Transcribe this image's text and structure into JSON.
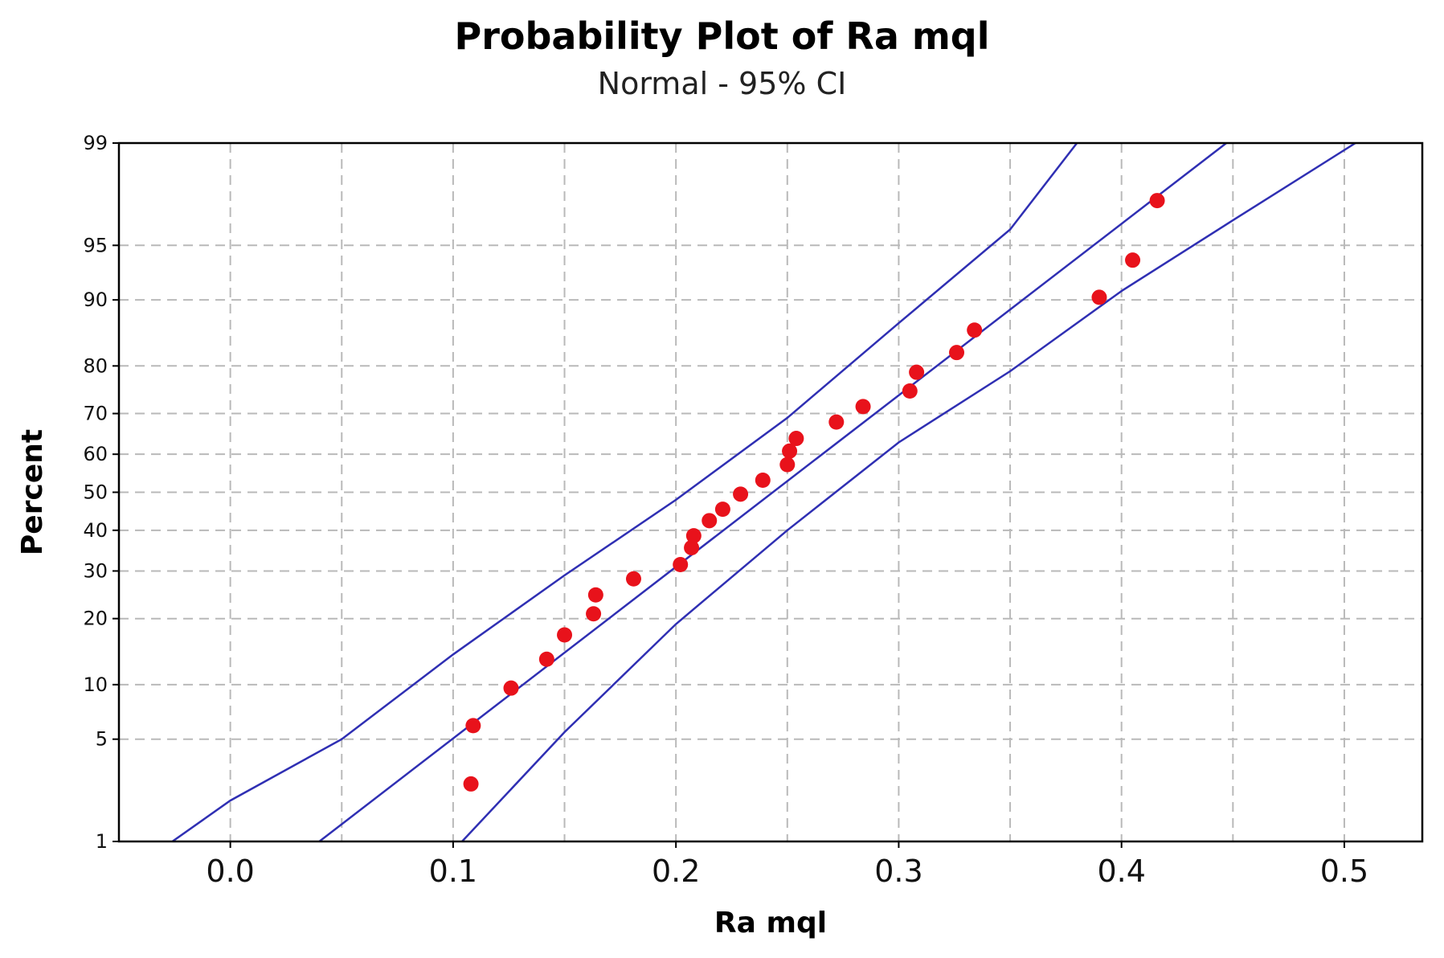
{
  "chart_data": {
    "type": "scatter",
    "title": "Probability Plot of Ra mql",
    "subtitle": "Normal - 95% CI",
    "xlabel": "Ra mql",
    "ylabel": "Percent",
    "xlim": [
      -0.05,
      0.535
    ],
    "ylim": [
      1,
      99
    ],
    "grid": true,
    "x_ticks": [
      0.0,
      0.1,
      0.2,
      0.3,
      0.4,
      0.5
    ],
    "x_tick_labels": [
      "0.0",
      "0.1",
      "0.2",
      "0.3",
      "0.4",
      "0.5"
    ],
    "x_minor_gridlines": [
      -0.05,
      0.05,
      0.15,
      0.25,
      0.35,
      0.45
    ],
    "y_ticks": [
      1,
      5,
      10,
      20,
      30,
      40,
      50,
      60,
      70,
      80,
      90,
      95,
      99
    ],
    "y_tick_labels": [
      "1",
      "5",
      "10",
      "20",
      "30",
      "40",
      "50",
      "60",
      "70",
      "80",
      "90",
      "95",
      "99"
    ],
    "points": [
      {
        "x": 0.108,
        "y": 2.6
      },
      {
        "x": 0.109,
        "y": 6.0
      },
      {
        "x": 0.126,
        "y": 9.6
      },
      {
        "x": 0.142,
        "y": 13.3
      },
      {
        "x": 0.15,
        "y": 17.1
      },
      {
        "x": 0.163,
        "y": 20.9
      },
      {
        "x": 0.164,
        "y": 24.7
      },
      {
        "x": 0.181,
        "y": 28.2
      },
      {
        "x": 0.202,
        "y": 31.5
      },
      {
        "x": 0.207,
        "y": 35.6
      },
      {
        "x": 0.208,
        "y": 38.6
      },
      {
        "x": 0.215,
        "y": 42.5
      },
      {
        "x": 0.221,
        "y": 45.5
      },
      {
        "x": 0.229,
        "y": 49.5
      },
      {
        "x": 0.239,
        "y": 53.2
      },
      {
        "x": 0.25,
        "y": 57.3
      },
      {
        "x": 0.251,
        "y": 60.8
      },
      {
        "x": 0.254,
        "y": 64.0
      },
      {
        "x": 0.272,
        "y": 68.0
      },
      {
        "x": 0.284,
        "y": 71.6
      },
      {
        "x": 0.305,
        "y": 75.0
      },
      {
        "x": 0.308,
        "y": 78.8
      },
      {
        "x": 0.326,
        "y": 82.4
      },
      {
        "x": 0.334,
        "y": 86.0
      },
      {
        "x": 0.39,
        "y": 90.3
      },
      {
        "x": 0.405,
        "y": 93.9
      },
      {
        "x": 0.416,
        "y": 97.4
      }
    ],
    "fit_line": {
      "mean": 0.2435,
      "sd": 0.0875
    },
    "ci_lines": {
      "upper": [
        {
          "x": -0.026,
          "y": 1
        },
        {
          "x": 0.0,
          "y": 2
        },
        {
          "x": 0.05,
          "y": 5
        },
        {
          "x": 0.1,
          "y": 14
        },
        {
          "x": 0.15,
          "y": 29
        },
        {
          "x": 0.2,
          "y": 48
        },
        {
          "x": 0.25,
          "y": 69
        },
        {
          "x": 0.3,
          "y": 87
        },
        {
          "x": 0.35,
          "y": 96
        },
        {
          "x": 0.38,
          "y": 99
        }
      ],
      "lower": [
        {
          "x": 0.104,
          "y": 1
        },
        {
          "x": 0.15,
          "y": 5.5
        },
        {
          "x": 0.2,
          "y": 19
        },
        {
          "x": 0.25,
          "y": 40
        },
        {
          "x": 0.3,
          "y": 63
        },
        {
          "x": 0.35,
          "y": 79
        },
        {
          "x": 0.4,
          "y": 91
        },
        {
          "x": 0.45,
          "y": 96.5
        },
        {
          "x": 0.505,
          "y": 99
        }
      ]
    },
    "colors": {
      "points": "#e8121b",
      "lines": "#2f2fb3",
      "grid": "#b9b9b9",
      "frame": "#000000"
    }
  }
}
